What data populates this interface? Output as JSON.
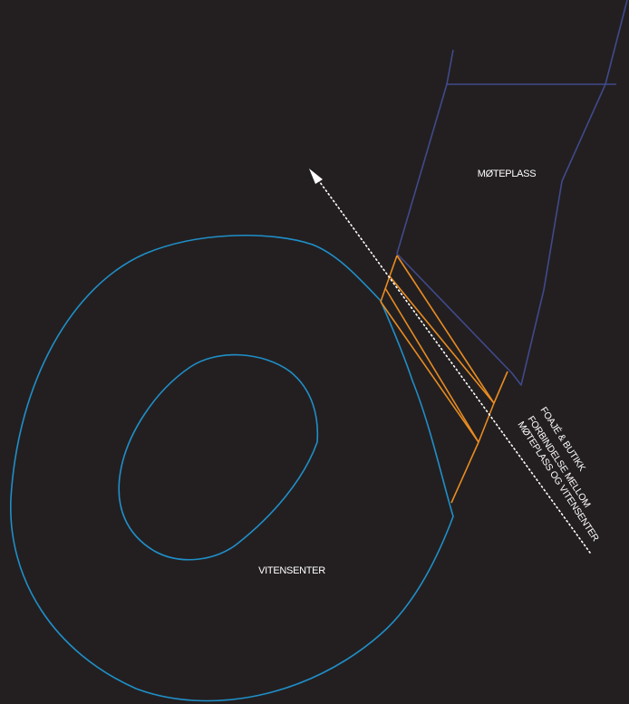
{
  "labels": {
    "moteplass": "MØTEPLASS",
    "vitensenter": "VITENSENTER",
    "foaje": "FOAJÉ & BUTIKK",
    "forbindelse_line1": "FORBINDELSE MELLOM",
    "forbindelse_line2": "MØTEPLASS OG VITENSENTER"
  },
  "colors": {
    "background": "#231f20",
    "vitensenter_outline": "#1f8fc9",
    "moteplass_outline": "#3f4a8c",
    "foaje_outline": "#e88c22",
    "arrow": "#ffffff",
    "text": "#ffffff"
  },
  "icons": {
    "direction_arrow": "arrow-up-left-dotted"
  }
}
